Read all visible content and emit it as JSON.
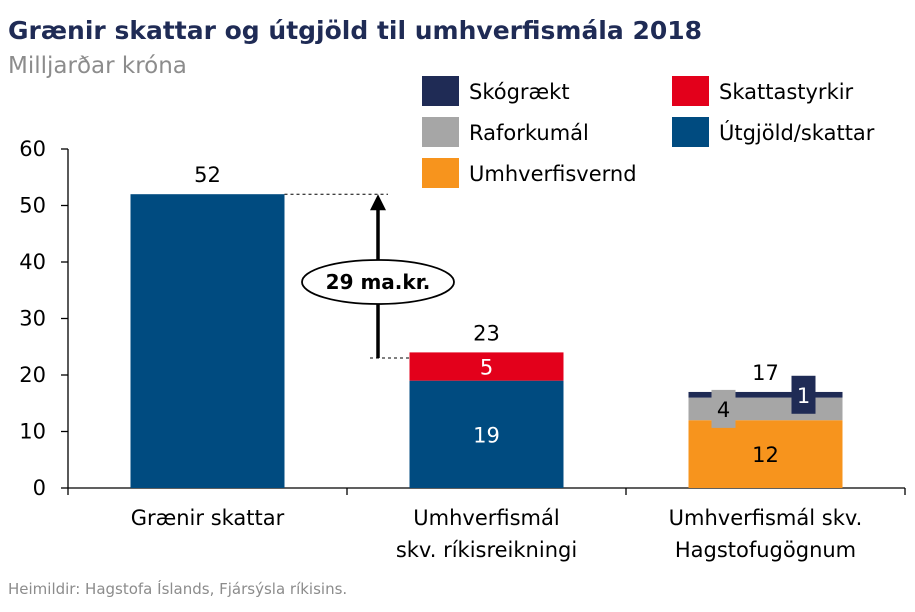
{
  "chart_data": {
    "type": "bar",
    "stacked": true,
    "title": "Grænir skattar og útgjöld til umhverfismála 2018",
    "subtitle": "Milljarðar króna",
    "ylim": [
      0,
      60
    ],
    "yticks": [
      0,
      10,
      20,
      30,
      40,
      50,
      60
    ],
    "categories": [
      [
        "Grænir skattar"
      ],
      [
        "Umhverfismál",
        "skv. ríkisreikningi"
      ],
      [
        "Umhverfismál skv.",
        "Hagstofugögnum"
      ]
    ],
    "series": [
      {
        "name": "Útgjöld/skattar",
        "color": "#004b80",
        "values": [
          52,
          19,
          0
        ],
        "labels": [
          "",
          "19",
          ""
        ],
        "label_color": "#ffffff"
      },
      {
        "name": "Umhverfisvernd",
        "color": "#f7941d",
        "values": [
          0,
          0,
          12
        ],
        "labels": [
          "",
          "",
          "12"
        ],
        "label_color": "#000000"
      },
      {
        "name": "Raforkumál",
        "color": "#a6a6a6",
        "values": [
          0,
          0,
          4
        ],
        "labels": [
          "",
          "",
          "4"
        ],
        "label_color": "#000000"
      },
      {
        "name": "Skattastyrkir",
        "color": "#e3001b",
        "values": [
          0,
          5,
          0
        ],
        "labels": [
          "",
          "5",
          ""
        ],
        "label_color": "#ffffff"
      },
      {
        "name": "Skógrækt",
        "color": "#1f2b55",
        "values": [
          0,
          0,
          1
        ],
        "labels": [
          "",
          "",
          "1"
        ],
        "label_color": "#ffffff"
      }
    ],
    "totals": [
      "52",
      "23",
      "17"
    ],
    "legend_order": [
      "Skógrækt",
      "Skattastyrkir",
      "Raforkumál",
      "Útgjöld/skattar",
      "Umhverfisvernd"
    ],
    "annotation": {
      "text": "29 ma.kr.",
      "from": 23,
      "to": 52
    },
    "source": "Heimildir: Hagstofa Íslands, Fjársýsla ríkisins."
  }
}
